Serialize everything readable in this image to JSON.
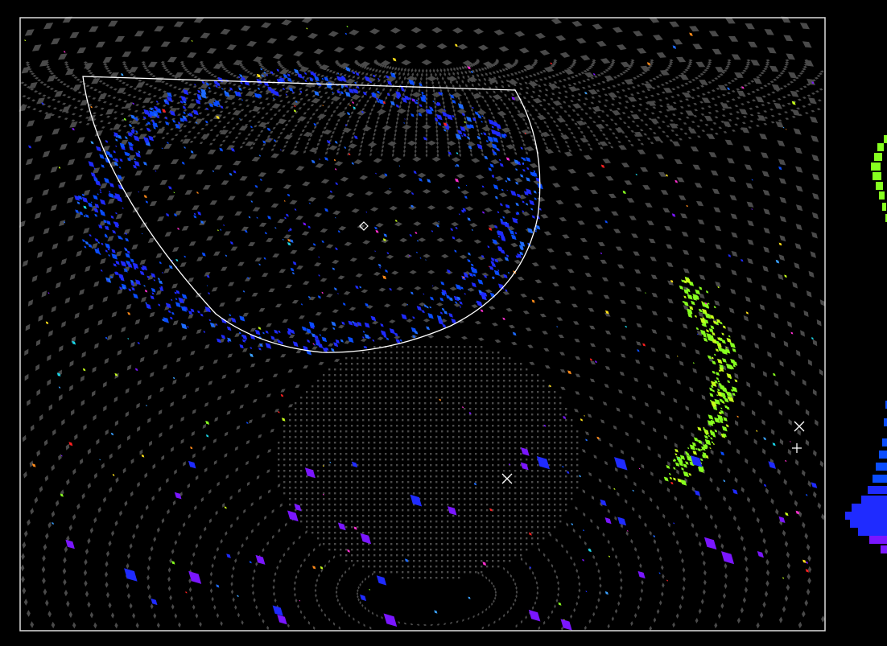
{
  "colors": {
    "background": "#000000",
    "frame": "#dcdcdc",
    "grid_tile": "#4a4a4a",
    "hit_palette": [
      "#1f2bff",
      "#0a4dff",
      "#1e6bff",
      "#3aa0ff",
      "#19d6e8",
      "#86ff1f",
      "#c6ff1a",
      "#ffe01a",
      "#ff8a1a",
      "#ff2020",
      "#ff2fd0",
      "#7a16ff"
    ],
    "ring_outline": "#ffffff"
  },
  "markers": [
    {
      "name": "vertex-diamond-icon",
      "symbol": "diamond"
    },
    {
      "name": "fit-cross-icon-main",
      "symbol": "x"
    },
    {
      "name": "fit-cross-icon-edge",
      "symbol": "x"
    },
    {
      "name": "fit-plus-icon-edge",
      "symbol": "plus"
    }
  ],
  "histogram": {
    "colors": [
      "#86ff1f",
      "#1f2bff",
      "#0a4dff",
      "#7a16ff"
    ]
  }
}
